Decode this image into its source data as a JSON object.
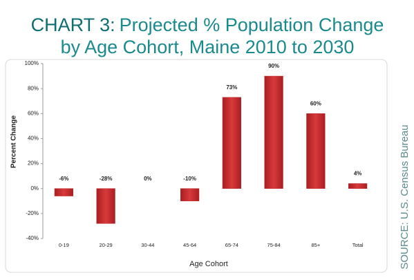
{
  "chart_data": {
    "type": "bar",
    "chart_label": "CHART 3:",
    "title": [
      "Projected % Population Change",
      "by Age Cohort, Maine 2010 to 2030"
    ],
    "x_label": "Age Cohort",
    "y_label": "Percent Change",
    "source": "SOURCE: U.S. Census Bureau",
    "categories": [
      "0-19",
      "20-29",
      "30-44",
      "45-64",
      "65-74",
      "75-84",
      "85+",
      "Total"
    ],
    "values": [
      -6,
      -28,
      0,
      -10,
      73,
      90,
      60,
      4
    ],
    "value_labels": [
      "-6%",
      "-28%",
      "0%",
      "-10%",
      "73%",
      "90%",
      "60%",
      "4%"
    ],
    "color": "#c0282a",
    "ylim": [
      -40,
      100
    ],
    "yticks": [
      {
        "value": -40,
        "label": "-40%"
      },
      {
        "value": -20,
        "label": "-20%"
      },
      {
        "value": 0,
        "label": "0%"
      },
      {
        "value": 20,
        "label": "20%"
      },
      {
        "value": 40,
        "label": "40%"
      },
      {
        "value": 60,
        "label": "60%"
      },
      {
        "value": 80,
        "label": "80%"
      },
      {
        "value": 100,
        "label": "100%"
      }
    ],
    "grid": false
  }
}
